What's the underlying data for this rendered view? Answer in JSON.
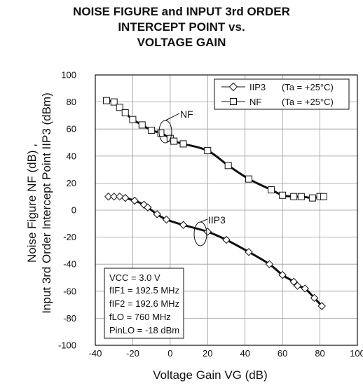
{
  "chart_data": {
    "type": "line",
    "title_lines": [
      "NOISE FIGURE and INPUT 3rd ORDER",
      "INTERCEPT POINT vs.",
      "VOLTAGE GAIN"
    ],
    "xlabel": "Voltage Gain  VG (dB)",
    "ylabel_lines": [
      "Noise Figure  NF (dB) ,",
      "Input 3rd Order Intercept Point  IIP3 (dBm)"
    ],
    "xlim": [
      -40,
      100
    ],
    "ylim": [
      -100,
      100
    ],
    "x_ticks": [
      "-40",
      "-20",
      "0",
      "20",
      "40",
      "60",
      "80",
      "100"
    ],
    "y_ticks": [
      "-100",
      "-80",
      "-60",
      "-40",
      "-20",
      "0",
      "20",
      "40",
      "60",
      "80",
      "100"
    ],
    "grid": true,
    "legend": "top-right",
    "series": [
      {
        "name": "IIP3",
        "condition": "(Ta = +25°C)",
        "marker": "diamond",
        "x": [
          -33,
          -30,
          -27,
          -24,
          -19,
          -14,
          -12,
          -7,
          -2,
          7,
          20,
          30,
          42,
          53,
          60,
          66,
          68,
          72,
          77,
          81
        ],
        "y": [
          10,
          10,
          10,
          9,
          7,
          4,
          2,
          -3,
          -7,
          -11,
          -16,
          -22,
          -31,
          -40,
          -48,
          -53,
          -56,
          -58,
          -65,
          -71
        ]
      },
      {
        "name": "NF",
        "condition": "(Ta = +25°C)",
        "marker": "square",
        "x": [
          -34,
          -30,
          -27,
          -24,
          -20,
          -15,
          -10,
          -5,
          0,
          2,
          7,
          20,
          31,
          42,
          54,
          60,
          66,
          70,
          76,
          80,
          82
        ],
        "y": [
          81,
          80,
          76,
          72,
          67,
          63,
          59,
          57,
          53,
          51,
          49,
          44,
          33,
          23,
          15,
          11,
          10,
          10,
          9,
          10,
          10
        ]
      }
    ],
    "annotations": [
      "NF",
      "IIP3"
    ],
    "conditions": [
      "VCC = 3.0 V",
      "fIF1 = 192.5 MHz",
      "fIF2 = 192.6 MHz",
      "fLO = 760 MHz",
      "PinLO = -18 dBm"
    ]
  }
}
